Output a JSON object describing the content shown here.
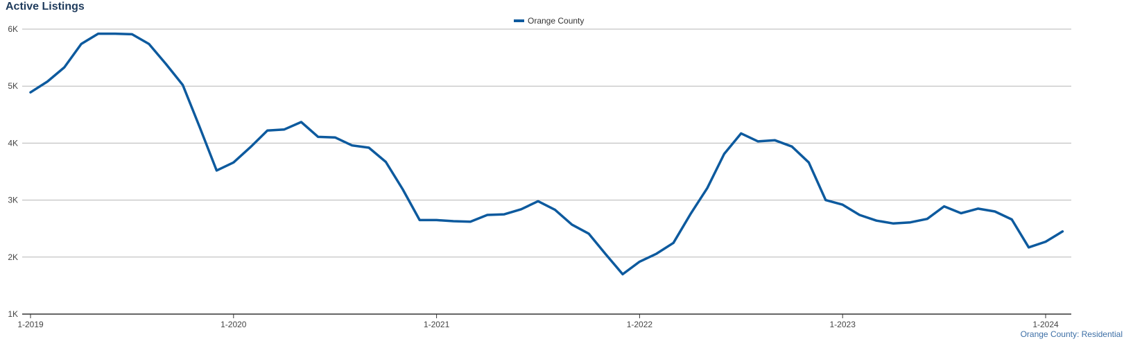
{
  "title": "Active Listings",
  "source_label": "Orange County: Residential",
  "colors": {
    "series": "#0d5a9e",
    "grid": "#b5b5b5",
    "axis": "#333333",
    "title": "#1f3b5c"
  },
  "chart_data": {
    "type": "line",
    "title": "Active Listings",
    "xlabel": "",
    "ylabel": "",
    "ylim": [
      1000,
      6000
    ],
    "y_ticks": [
      {
        "value": 1000,
        "label": "1K"
      },
      {
        "value": 2000,
        "label": "2K"
      },
      {
        "value": 3000,
        "label": "3K"
      },
      {
        "value": 4000,
        "label": "4K"
      },
      {
        "value": 5000,
        "label": "5K"
      },
      {
        "value": 6000,
        "label": "6K"
      }
    ],
    "x_ticks": [
      {
        "value": "2019-01",
        "label": "1-2019"
      },
      {
        "value": "2020-01",
        "label": "1-2020"
      },
      {
        "value": "2021-01",
        "label": "1-2021"
      },
      {
        "value": "2022-01",
        "label": "1-2022"
      },
      {
        "value": "2023-01",
        "label": "1-2023"
      },
      {
        "value": "2024-01",
        "label": "1-2024"
      }
    ],
    "grid": true,
    "legend_position": "top-center",
    "series": [
      {
        "name": "Orange County",
        "color": "#0d5a9e",
        "points": [
          [
            "2019-01",
            4890
          ],
          [
            "2019-02",
            5080
          ],
          [
            "2019-03",
            5330
          ],
          [
            "2019-04",
            5740
          ],
          [
            "2019-05",
            5920
          ],
          [
            "2019-06",
            5920
          ],
          [
            "2019-07",
            5910
          ],
          [
            "2019-08",
            5740
          ],
          [
            "2019-09",
            5390
          ],
          [
            "2019-10",
            5020
          ],
          [
            "2019-11",
            4280
          ],
          [
            "2019-12",
            3520
          ],
          [
            "2020-01",
            3660
          ],
          [
            "2020-02",
            3930
          ],
          [
            "2020-03",
            4220
          ],
          [
            "2020-04",
            4240
          ],
          [
            "2020-05",
            4370
          ],
          [
            "2020-06",
            4110
          ],
          [
            "2020-07",
            4100
          ],
          [
            "2020-08",
            3960
          ],
          [
            "2020-09",
            3920
          ],
          [
            "2020-10",
            3670
          ],
          [
            "2020-11",
            3190
          ],
          [
            "2020-12",
            2650
          ],
          [
            "2021-01",
            2650
          ],
          [
            "2021-02",
            2630
          ],
          [
            "2021-03",
            2620
          ],
          [
            "2021-04",
            2740
          ],
          [
            "2021-05",
            2750
          ],
          [
            "2021-06",
            2840
          ],
          [
            "2021-07",
            2980
          ],
          [
            "2021-08",
            2830
          ],
          [
            "2021-09",
            2570
          ],
          [
            "2021-10",
            2410
          ],
          [
            "2021-11",
            2050
          ],
          [
            "2021-12",
            1700
          ],
          [
            "2022-01",
            1920
          ],
          [
            "2022-02",
            2060
          ],
          [
            "2022-03",
            2250
          ],
          [
            "2022-04",
            2750
          ],
          [
            "2022-05",
            3210
          ],
          [
            "2022-06",
            3810
          ],
          [
            "2022-07",
            4170
          ],
          [
            "2022-08",
            4030
          ],
          [
            "2022-09",
            4050
          ],
          [
            "2022-10",
            3940
          ],
          [
            "2022-11",
            3660
          ],
          [
            "2022-12",
            3000
          ],
          [
            "2023-01",
            2920
          ],
          [
            "2023-02",
            2740
          ],
          [
            "2023-03",
            2640
          ],
          [
            "2023-04",
            2590
          ],
          [
            "2023-05",
            2610
          ],
          [
            "2023-06",
            2670
          ],
          [
            "2023-07",
            2890
          ],
          [
            "2023-08",
            2770
          ],
          [
            "2023-09",
            2850
          ],
          [
            "2023-10",
            2800
          ],
          [
            "2023-11",
            2660
          ],
          [
            "2023-12",
            2170
          ],
          [
            "2024-01",
            2270
          ],
          [
            "2024-02",
            2450
          ]
        ]
      }
    ]
  }
}
